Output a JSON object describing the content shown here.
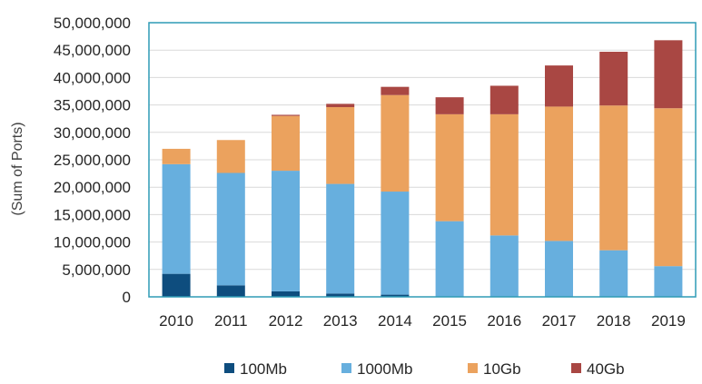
{
  "chart_data": {
    "type": "bar",
    "stacked": true,
    "title": "",
    "xlabel": "",
    "ylabel": "(Sum of Ports)",
    "ylim": [
      0,
      50000000
    ],
    "yticks": [
      0,
      5000000,
      10000000,
      15000000,
      20000000,
      25000000,
      30000000,
      35000000,
      40000000,
      45000000,
      50000000
    ],
    "ytick_labels": [
      "0",
      "5,000,000",
      "10,000,000",
      "15,000,000",
      "20,000,000",
      "25,000,000",
      "30,000,000",
      "35,000,000",
      "40,000,000",
      "45,000,000",
      "50,000,000"
    ],
    "categories": [
      "2010",
      "2011",
      "2012",
      "2013",
      "2014",
      "2015",
      "2016",
      "2017",
      "2018",
      "2019"
    ],
    "series": [
      {
        "name": "100Mb",
        "color": "#0e4d7e",
        "values": [
          4200000,
          2100000,
          1000000,
          600000,
          400000,
          0,
          0,
          0,
          0,
          0
        ]
      },
      {
        "name": "1000Mb",
        "color": "#67afde",
        "values": [
          20000000,
          20500000,
          22000000,
          20000000,
          18800000,
          13800000,
          11200000,
          10200000,
          8500000,
          5600000
        ]
      },
      {
        "name": "10Gb",
        "color": "#eba25e",
        "values": [
          2800000,
          6000000,
          10000000,
          14000000,
          17600000,
          19500000,
          22100000,
          24500000,
          26400000,
          28800000
        ]
      },
      {
        "name": "40Gb",
        "color": "#a94743",
        "values": [
          0,
          0,
          200000,
          600000,
          1500000,
          3100000,
          5200000,
          7500000,
          9800000,
          12400000
        ]
      }
    ],
    "grid": true,
    "legend_position": "bottom"
  }
}
